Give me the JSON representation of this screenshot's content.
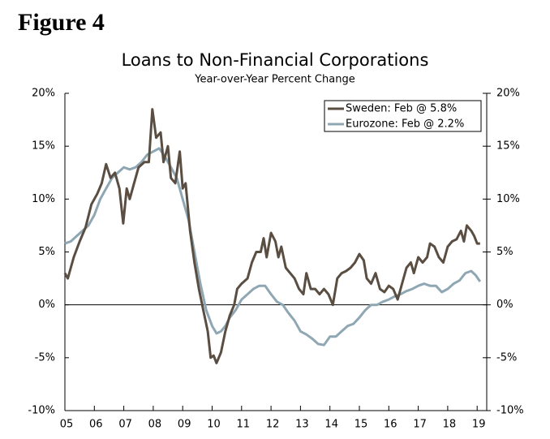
{
  "chart_data": {
    "type": "line",
    "figure_label": "Figure 4",
    "title": "Loans to Non-Financial Corporations",
    "subtitle": "Year-over-Year Percent Change",
    "xlim": [
      2005,
      2019.35
    ],
    "xticks": [
      {
        "value": 2005,
        "label": "05"
      },
      {
        "value": 2006,
        "label": "06"
      },
      {
        "value": 2007,
        "label": "07"
      },
      {
        "value": 2008,
        "label": "08"
      },
      {
        "value": 2009,
        "label": "09"
      },
      {
        "value": 2010,
        "label": "10"
      },
      {
        "value": 2011,
        "label": "11"
      },
      {
        "value": 2012,
        "label": "12"
      },
      {
        "value": 2013,
        "label": "13"
      },
      {
        "value": 2014,
        "label": "14"
      },
      {
        "value": 2015,
        "label": "15"
      },
      {
        "value": 2016,
        "label": "16"
      },
      {
        "value": 2017,
        "label": "17"
      },
      {
        "value": 2018,
        "label": "18"
      },
      {
        "value": 2019,
        "label": "19"
      }
    ],
    "ylim": [
      -10,
      20
    ],
    "yticks": [
      {
        "value": -10,
        "label": "-10%"
      },
      {
        "value": -5,
        "label": "-5%"
      },
      {
        "value": 0,
        "label": "0%"
      },
      {
        "value": 5,
        "label": "5%"
      },
      {
        "value": 10,
        "label": "10%"
      },
      {
        "value": 15,
        "label": "15%"
      },
      {
        "value": 20,
        "label": "20%"
      }
    ],
    "y2lim": [
      -10,
      20
    ],
    "y2ticks": [
      {
        "value": -10,
        "label": "-10%"
      },
      {
        "value": -5,
        "label": "-5%"
      },
      {
        "value": 0,
        "label": "0%"
      },
      {
        "value": 5,
        "label": "5%"
      },
      {
        "value": 10,
        "label": "10%"
      },
      {
        "value": 15,
        "label": "15%"
      },
      {
        "value": 20,
        "label": "20%"
      }
    ],
    "legend": "top-right",
    "series": [
      {
        "name": "Sweden: Feb @ 5.8%",
        "color": "#5a4d41",
        "x": [
          2005.0,
          2005.1,
          2005.3,
          2005.5,
          2005.7,
          2005.9,
          2006.1,
          2006.25,
          2006.4,
          2006.55,
          2006.7,
          2006.85,
          2006.98,
          2007.1,
          2007.2,
          2007.35,
          2007.5,
          2007.7,
          2007.85,
          2007.97,
          2008.1,
          2008.25,
          2008.35,
          2008.5,
          2008.6,
          2008.75,
          2008.9,
          2009.0,
          2009.1,
          2009.25,
          2009.4,
          2009.55,
          2009.7,
          2009.85,
          2009.95,
          2010.05,
          2010.15,
          2010.3,
          2010.45,
          2010.6,
          2010.75,
          2010.85,
          2011.0,
          2011.2,
          2011.35,
          2011.5,
          2011.65,
          2011.75,
          2011.85,
          2012.0,
          2012.15,
          2012.25,
          2012.35,
          2012.5,
          2012.65,
          2012.8,
          2012.95,
          2013.1,
          2013.2,
          2013.35,
          2013.5,
          2013.65,
          2013.8,
          2013.95,
          2014.1,
          2014.25,
          2014.4,
          2014.55,
          2014.7,
          2014.85,
          2015.0,
          2015.15,
          2015.25,
          2015.4,
          2015.55,
          2015.7,
          2015.85,
          2016.0,
          2016.15,
          2016.3,
          2016.45,
          2016.6,
          2016.75,
          2016.85,
          2017.0,
          2017.15,
          2017.3,
          2017.4,
          2017.55,
          2017.7,
          2017.85,
          2018.0,
          2018.15,
          2018.3,
          2018.45,
          2018.55,
          2018.65,
          2018.8,
          2018.9,
          2019.0,
          2019.1
        ],
        "values": [
          3.0,
          2.5,
          4.5,
          6.0,
          7.3,
          9.5,
          10.5,
          11.5,
          13.3,
          12.0,
          12.5,
          11.0,
          7.7,
          11.0,
          10.0,
          11.5,
          13.0,
          13.5,
          13.5,
          18.5,
          15.8,
          16.3,
          13.5,
          15.0,
          12.0,
          11.5,
          14.5,
          11.0,
          11.5,
          7.0,
          4.0,
          1.5,
          -0.5,
          -2.5,
          -5.0,
          -4.8,
          -5.5,
          -4.5,
          -2.5,
          -1.0,
          0.0,
          1.5,
          2.0,
          2.5,
          4.0,
          5.0,
          5.0,
          6.3,
          4.5,
          6.8,
          6.0,
          4.5,
          5.5,
          3.5,
          3.0,
          2.5,
          1.5,
          1.0,
          3.0,
          1.5,
          1.5,
          1.0,
          1.5,
          1.0,
          0.0,
          2.5,
          3.0,
          3.2,
          3.5,
          4.0,
          4.8,
          4.2,
          2.5,
          2.0,
          3.0,
          1.5,
          1.2,
          1.8,
          1.5,
          0.5,
          2.0,
          3.5,
          4.0,
          3.0,
          4.5,
          4.0,
          4.5,
          5.8,
          5.5,
          4.5,
          4.0,
          5.5,
          6.0,
          6.2,
          7.0,
          6.0,
          7.5,
          7.0,
          6.5,
          5.8,
          5.8
        ]
      },
      {
        "name": "Eurozone: Feb @ 2.2%",
        "color": "#8fa6b3",
        "x": [
          2005.0,
          2005.2,
          2005.4,
          2005.6,
          2005.8,
          2006.0,
          2006.2,
          2006.4,
          2006.6,
          2006.8,
          2007.0,
          2007.2,
          2007.4,
          2007.6,
          2007.8,
          2008.0,
          2008.2,
          2008.4,
          2008.6,
          2008.8,
          2009.0,
          2009.2,
          2009.4,
          2009.6,
          2009.8,
          2010.0,
          2010.15,
          2010.3,
          2010.45,
          2010.6,
          2010.8,
          2011.0,
          2011.2,
          2011.4,
          2011.6,
          2011.8,
          2012.0,
          2012.2,
          2012.4,
          2012.6,
          2012.8,
          2013.0,
          2013.2,
          2013.4,
          2013.6,
          2013.8,
          2014.0,
          2014.2,
          2014.4,
          2014.6,
          2014.8,
          2015.0,
          2015.2,
          2015.4,
          2015.6,
          2015.8,
          2016.0,
          2016.2,
          2016.4,
          2016.6,
          2016.8,
          2017.0,
          2017.2,
          2017.4,
          2017.6,
          2017.8,
          2018.0,
          2018.2,
          2018.4,
          2018.6,
          2018.8,
          2018.95,
          2019.1
        ],
        "values": [
          5.8,
          6.0,
          6.5,
          7.0,
          7.5,
          8.5,
          10.0,
          11.0,
          12.0,
          12.5,
          13.0,
          12.8,
          13.0,
          13.5,
          14.2,
          14.5,
          14.8,
          14.0,
          13.0,
          12.0,
          10.0,
          8.0,
          5.0,
          2.0,
          -0.5,
          -2.0,
          -2.7,
          -2.5,
          -2.0,
          -1.2,
          -0.5,
          0.5,
          1.0,
          1.5,
          1.8,
          1.8,
          1.0,
          0.3,
          0.0,
          -0.8,
          -1.5,
          -2.5,
          -2.8,
          -3.2,
          -3.7,
          -3.8,
          -3.0,
          -3.0,
          -2.5,
          -2.0,
          -1.8,
          -1.2,
          -0.5,
          0.0,
          0.0,
          0.3,
          0.5,
          0.8,
          1.0,
          1.3,
          1.5,
          1.8,
          2.0,
          1.8,
          1.8,
          1.2,
          1.5,
          2.0,
          2.3,
          3.0,
          3.2,
          2.8,
          2.2
        ]
      }
    ]
  }
}
